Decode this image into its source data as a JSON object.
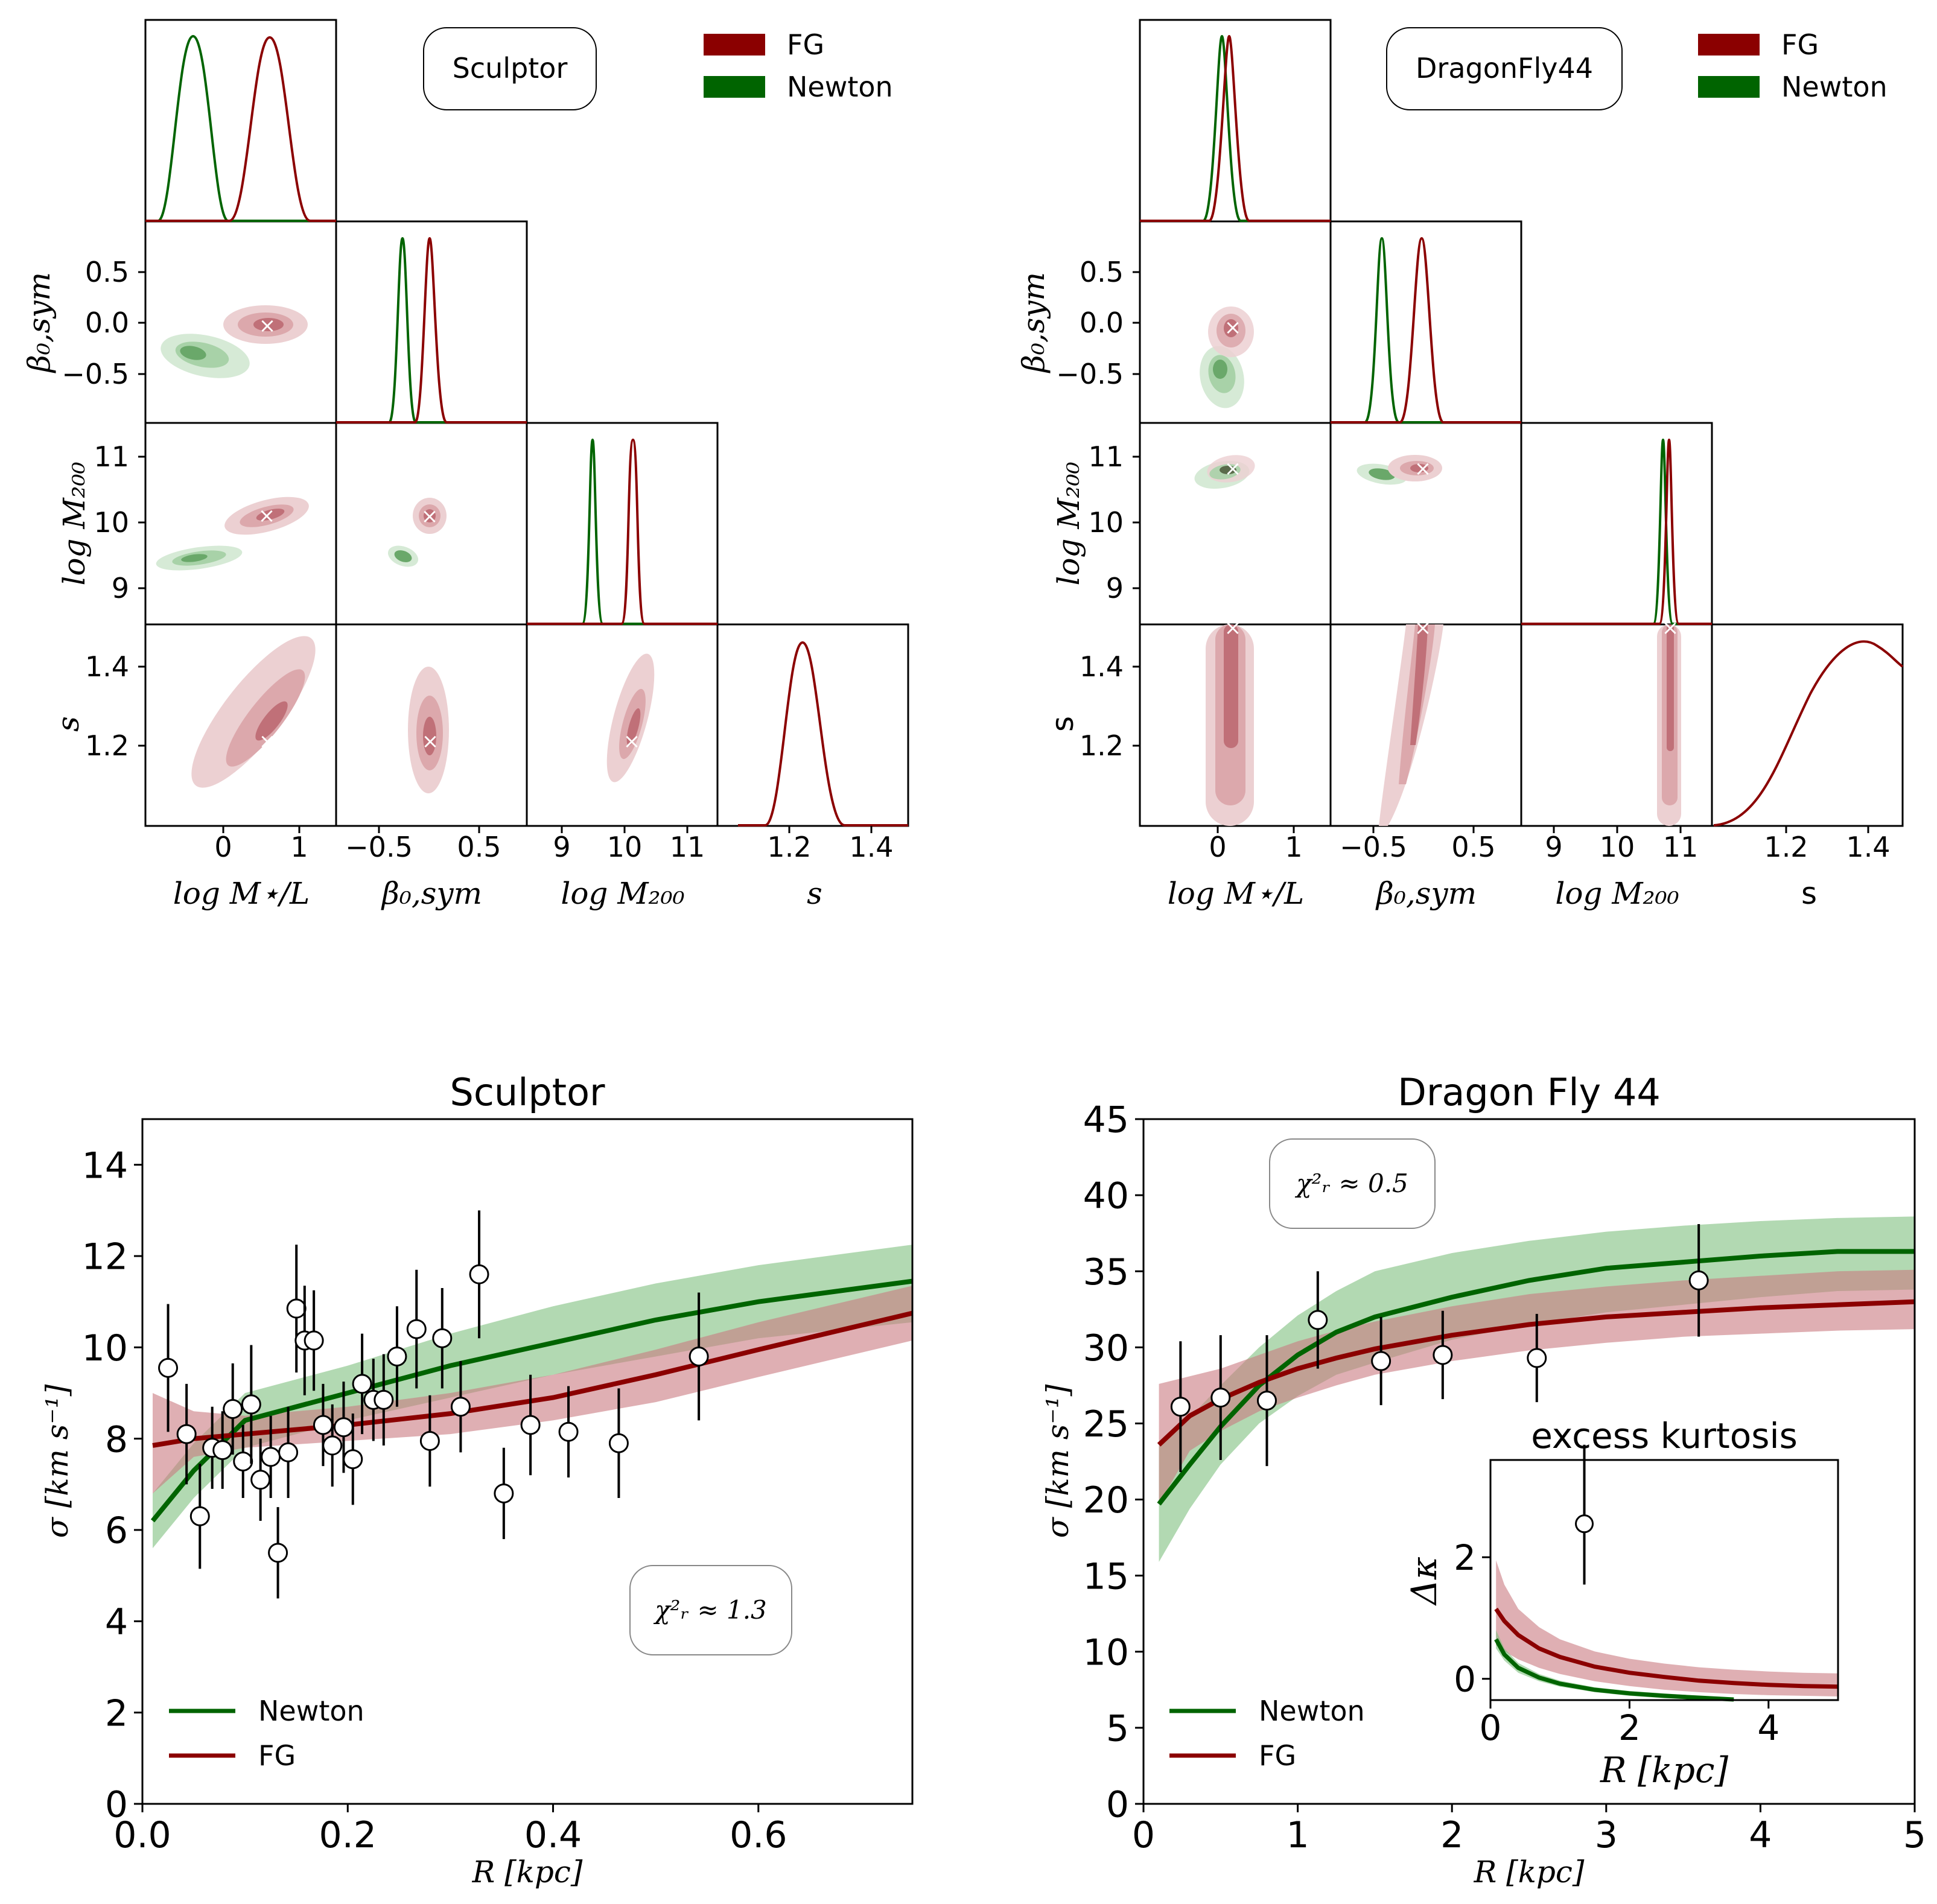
{
  "colors": {
    "fg": "#8b0000",
    "newton": "#006400",
    "fg_band": "#c97a80",
    "newton_band": "#7fbf7f",
    "fg_contour_outer": "#ecd0d2",
    "fg_contour_mid": "#dca8ac",
    "fg_contour_inner": "#c07078",
    "newton_contour_outer": "#d6ead6",
    "newton_contour_mid": "#a8d2a8",
    "newton_contour_inner": "#6aa86a"
  },
  "corner_plots": [
    {
      "label": "Sculptor",
      "legend": [
        "FG",
        "Newton"
      ],
      "axis_labels": [
        "log M⋆/L",
        "β₀,sym",
        "log M₂₀₀",
        "s"
      ],
      "row_labels": [
        "β₀,sym",
        "log M₂₀₀",
        "s"
      ],
      "ticks": {
        "logML": [
          "0",
          "1"
        ],
        "beta": [
          "−0.5",
          "0.0",
          "0.5"
        ],
        "beta_x": [
          "−0.5",
          "0.5"
        ],
        "logM200": [
          "9",
          "10",
          "11"
        ],
        "s": [
          "1.2",
          "1.4"
        ]
      }
    },
    {
      "label": "DragonFly44",
      "legend": [
        "FG",
        "Newton"
      ],
      "axis_labels": [
        "log M⋆/L",
        "β₀,sym",
        "log M₂₀₀",
        "s"
      ],
      "row_labels": [
        "β₀,sym",
        "log M₂₀₀",
        "s"
      ],
      "ticks": {
        "logML": [
          "0",
          "1"
        ],
        "beta": [
          "−0.5",
          "0.0",
          "0.5"
        ],
        "beta_x": [
          "−0.5",
          "0.5"
        ],
        "logM200": [
          "9",
          "10",
          "11"
        ],
        "s": [
          "1.2",
          "1.4"
        ]
      }
    }
  ],
  "chart_data": [
    {
      "type": "line",
      "title": "Sculptor",
      "xlabel": "R [kpc]",
      "ylabel": "σ [km s⁻¹]",
      "xlim": [
        0.0,
        0.75
      ],
      "ylim": [
        0,
        15
      ],
      "xticks": [
        0.0,
        0.2,
        0.4,
        0.6
      ],
      "xtick_labels": [
        "0.0",
        "0.2",
        "0.4",
        "0.6"
      ],
      "yticks": [
        0,
        2,
        4,
        6,
        8,
        10,
        12,
        14
      ],
      "yticks_labels": [
        "0",
        "2",
        "4",
        "6",
        "8",
        "10",
        "12",
        "14"
      ],
      "chi2_label": "χ²ᵣ ≈ 1.3",
      "legend": [
        "Newton",
        "FG"
      ],
      "legend_position": "bottom-left",
      "series": [
        {
          "name": "Newton",
          "x": [
            0.01,
            0.05,
            0.1,
            0.2,
            0.3,
            0.4,
            0.5,
            0.6,
            0.75
          ],
          "y": [
            6.2,
            7.3,
            8.4,
            9.0,
            9.6,
            10.1,
            10.6,
            11.0,
            11.45
          ],
          "y_lo": [
            5.6,
            6.7,
            7.8,
            8.4,
            8.9,
            9.4,
            9.8,
            10.2,
            10.55
          ],
          "y_hi": [
            6.8,
            7.9,
            9.0,
            9.6,
            10.3,
            10.9,
            11.4,
            11.8,
            12.25
          ]
        },
        {
          "name": "FG",
          "x": [
            0.01,
            0.05,
            0.1,
            0.2,
            0.3,
            0.4,
            0.5,
            0.6,
            0.75
          ],
          "y": [
            7.85,
            8.0,
            8.1,
            8.3,
            8.55,
            8.9,
            9.4,
            9.95,
            10.75
          ],
          "y_lo": [
            6.8,
            7.6,
            7.8,
            7.95,
            8.1,
            8.4,
            8.8,
            9.35,
            10.15
          ],
          "y_hi": [
            9.0,
            8.6,
            8.5,
            8.7,
            9.0,
            9.4,
            9.95,
            10.55,
            11.35
          ]
        }
      ],
      "points": [
        {
          "x": 0.025,
          "y": 9.55,
          "err": 1.4
        },
        {
          "x": 0.043,
          "y": 8.1,
          "err": 1.1
        },
        {
          "x": 0.056,
          "y": 6.3,
          "err": 1.15
        },
        {
          "x": 0.068,
          "y": 7.8,
          "err": 0.9
        },
        {
          "x": 0.078,
          "y": 7.75,
          "err": 0.85
        },
        {
          "x": 0.088,
          "y": 8.65,
          "err": 1.0
        },
        {
          "x": 0.098,
          "y": 7.5,
          "err": 0.8
        },
        {
          "x": 0.106,
          "y": 8.75,
          "err": 1.3
        },
        {
          "x": 0.115,
          "y": 7.1,
          "err": 0.9
        },
        {
          "x": 0.125,
          "y": 7.6,
          "err": 0.9
        },
        {
          "x": 0.132,
          "y": 5.5,
          "err": 1.0
        },
        {
          "x": 0.142,
          "y": 7.7,
          "err": 1.0
        },
        {
          "x": 0.15,
          "y": 10.85,
          "err": 1.4
        },
        {
          "x": 0.158,
          "y": 10.15,
          "err": 1.2
        },
        {
          "x": 0.167,
          "y": 10.15,
          "err": 1.1
        },
        {
          "x": 0.176,
          "y": 8.3,
          "err": 0.9
        },
        {
          "x": 0.185,
          "y": 7.85,
          "err": 0.9
        },
        {
          "x": 0.196,
          "y": 8.25,
          "err": 1.0
        },
        {
          "x": 0.205,
          "y": 7.55,
          "err": 1.0
        },
        {
          "x": 0.214,
          "y": 9.2,
          "err": 1.1
        },
        {
          "x": 0.225,
          "y": 8.85,
          "err": 0.9
        },
        {
          "x": 0.235,
          "y": 8.85,
          "err": 1.0
        },
        {
          "x": 0.248,
          "y": 9.8,
          "err": 1.1
        },
        {
          "x": 0.267,
          "y": 10.4,
          "err": 1.3
        },
        {
          "x": 0.28,
          "y": 7.95,
          "err": 1.0
        },
        {
          "x": 0.292,
          "y": 10.2,
          "err": 1.1
        },
        {
          "x": 0.31,
          "y": 8.7,
          "err": 1.0
        },
        {
          "x": 0.328,
          "y": 11.6,
          "err": 1.4
        },
        {
          "x": 0.352,
          "y": 6.8,
          "err": 1.0
        },
        {
          "x": 0.378,
          "y": 8.3,
          "err": 1.1
        },
        {
          "x": 0.415,
          "y": 8.15,
          "err": 1.0
        },
        {
          "x": 0.464,
          "y": 7.9,
          "err": 1.2
        },
        {
          "x": 0.542,
          "y": 9.8,
          "err": 1.4
        }
      ]
    },
    {
      "type": "line",
      "title": "Dragon Fly 44",
      "xlabel": "R [kpc]",
      "ylabel": "σ [km s⁻¹]",
      "xlim": [
        0,
        5
      ],
      "ylim": [
        0,
        45
      ],
      "xticks": [
        0,
        1,
        2,
        3,
        4,
        5
      ],
      "xtick_labels": [
        "0",
        "1",
        "2",
        "3",
        "4",
        "5"
      ],
      "yticks": [
        0,
        5,
        10,
        15,
        20,
        25,
        30,
        35,
        40,
        45
      ],
      "yticks_labels": [
        "0",
        "5",
        "10",
        "15",
        "20",
        "25",
        "30",
        "35",
        "40",
        "45"
      ],
      "chi2_label": "χ²ᵣ ≈ 0.5",
      "legend": [
        "Newton",
        "FG"
      ],
      "legend_position": "bottom-left",
      "series": [
        {
          "name": "Newton",
          "x": [
            0.1,
            0.3,
            0.5,
            0.75,
            1.0,
            1.25,
            1.5,
            2.0,
            2.5,
            3.0,
            3.5,
            4.0,
            4.5,
            5.0
          ],
          "y": [
            19.7,
            22.3,
            24.8,
            27.5,
            29.5,
            31.0,
            32.0,
            33.3,
            34.4,
            35.2,
            35.6,
            36.0,
            36.3,
            36.3
          ],
          "y_lo": [
            15.9,
            19.4,
            22.3,
            25.0,
            26.8,
            28.2,
            29.0,
            30.5,
            31.5,
            32.3,
            32.8,
            33.3,
            33.7,
            33.8
          ],
          "y_hi": [
            23.5,
            25.4,
            27.5,
            30.0,
            32.1,
            33.7,
            35.0,
            36.2,
            37.0,
            37.6,
            38.0,
            38.3,
            38.5,
            38.6
          ]
        },
        {
          "name": "FG",
          "x": [
            0.1,
            0.3,
            0.5,
            0.75,
            1.0,
            1.25,
            1.5,
            2.0,
            2.5,
            3.0,
            3.5,
            4.0,
            4.5,
            5.0
          ],
          "y": [
            23.6,
            25.5,
            26.6,
            27.7,
            28.6,
            29.3,
            29.9,
            30.8,
            31.5,
            32.0,
            32.3,
            32.6,
            32.8,
            33.0
          ],
          "y_lo": [
            19.7,
            23.2,
            24.5,
            25.8,
            26.7,
            27.5,
            28.2,
            29.1,
            29.8,
            30.3,
            30.7,
            30.9,
            31.1,
            31.2
          ],
          "y_hi": [
            27.6,
            28.1,
            28.6,
            29.5,
            30.4,
            31.1,
            31.7,
            32.7,
            33.5,
            34.0,
            34.4,
            34.7,
            35.0,
            35.1
          ]
        }
      ],
      "points": [
        {
          "x": 0.24,
          "y": 26.1,
          "err": 4.3
        },
        {
          "x": 0.5,
          "y": 26.7,
          "err": 4.1
        },
        {
          "x": 0.8,
          "y": 26.5,
          "err": 4.3
        },
        {
          "x": 1.13,
          "y": 31.8,
          "err": 3.2
        },
        {
          "x": 1.54,
          "y": 29.1,
          "err": 2.9
        },
        {
          "x": 1.94,
          "y": 29.5,
          "err": 2.9
        },
        {
          "x": 2.55,
          "y": 29.3,
          "err": 2.9
        },
        {
          "x": 3.6,
          "y": 34.4,
          "err": 3.7
        }
      ],
      "inset": {
        "title": "excess kurtosis",
        "xlabel": "R [kpc]",
        "ylabel": "Δκ",
        "xlim": [
          0,
          5
        ],
        "ylim": [
          -0.35,
          3.6
        ],
        "xticks": [
          0,
          2,
          4
        ],
        "xtick_labels": [
          "0",
          "2",
          "4"
        ],
        "yticks": [
          0,
          2
        ],
        "ytick_labels": [
          "0",
          "2"
        ],
        "series": [
          {
            "name": "FG",
            "x": [
              0.08,
              0.2,
              0.4,
              0.7,
              1.0,
              1.5,
              2.0,
              2.5,
              3.0,
              3.5,
              4.0,
              4.5,
              5.0
            ],
            "y": [
              1.15,
              0.95,
              0.72,
              0.5,
              0.36,
              0.2,
              0.1,
              0.03,
              -0.03,
              -0.07,
              -0.1,
              -0.12,
              -0.13
            ],
            "y_lo": [
              0.55,
              0.45,
              0.32,
              0.18,
              0.08,
              -0.04,
              -0.12,
              -0.18,
              -0.22,
              -0.25,
              -0.27,
              -0.28,
              -0.29
            ],
            "y_hi": [
              1.95,
              1.55,
              1.15,
              0.85,
              0.65,
              0.45,
              0.33,
              0.25,
              0.19,
              0.15,
              0.12,
              0.1,
              0.09
            ]
          },
          {
            "name": "Newton",
            "x": [
              0.08,
              0.2,
              0.4,
              0.7,
              1.0,
              1.5,
              2.0,
              2.5,
              3.0,
              3.5
            ],
            "y": [
              0.65,
              0.4,
              0.18,
              0.02,
              -0.08,
              -0.18,
              -0.24,
              -0.28,
              -0.31,
              -0.34
            ],
            "y_lo": [
              0.5,
              0.3,
              0.1,
              -0.04,
              -0.13,
              -0.22,
              -0.28,
              -0.32,
              -0.34,
              -0.36
            ],
            "y_hi": [
              0.8,
              0.5,
              0.26,
              0.08,
              -0.03,
              -0.14,
              -0.2,
              -0.24,
              -0.28,
              -0.32
            ]
          }
        ],
        "points": [
          {
            "x": 1.35,
            "y": 2.55,
            "err_lo": 1.0,
            "err_hi": 1.3
          }
        ]
      }
    }
  ]
}
